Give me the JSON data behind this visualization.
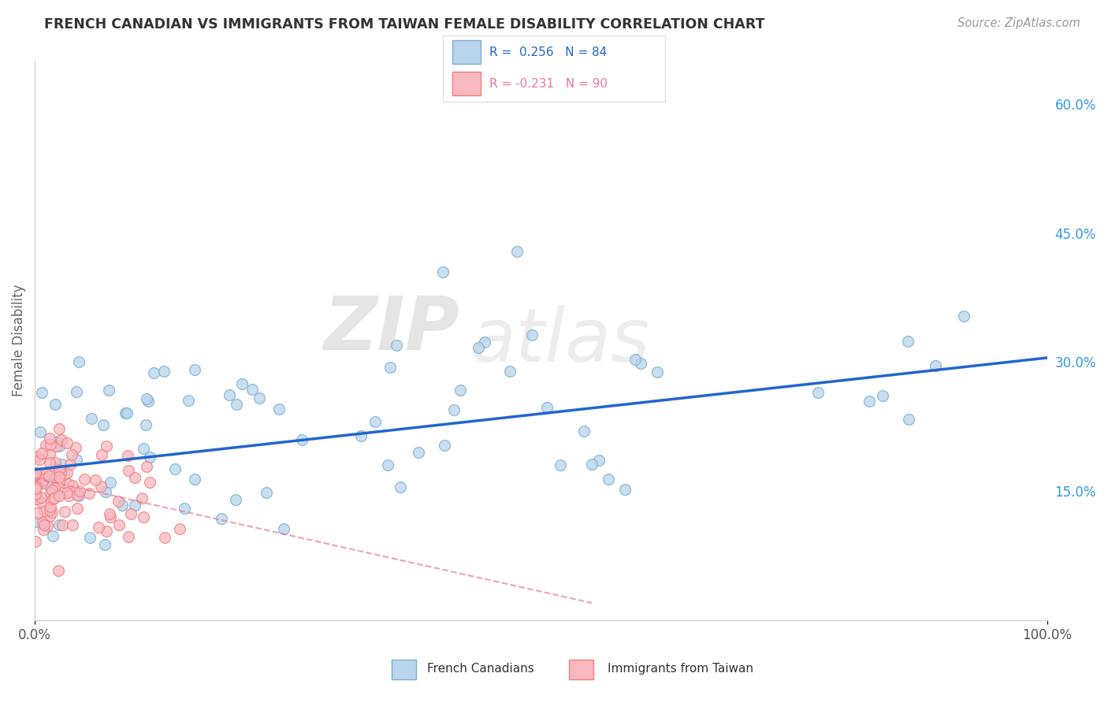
{
  "title": "FRENCH CANADIAN VS IMMIGRANTS FROM TAIWAN FEMALE DISABILITY CORRELATION CHART",
  "source": "Source: ZipAtlas.com",
  "ylabel": "Female Disability",
  "xlim": [
    0.0,
    1.0
  ],
  "ylim": [
    0.0,
    0.65
  ],
  "yticks": [
    0.15,
    0.3,
    0.45,
    0.6
  ],
  "ytick_labels": [
    "15.0%",
    "30.0%",
    "45.0%",
    "60.0%"
  ],
  "xticks": [
    0.0,
    1.0
  ],
  "xtick_labels": [
    "0.0%",
    "100.0%"
  ],
  "color_blue": "#7AAFD4",
  "color_blue_fill": "#B8D5EC",
  "color_pink": "#F08080",
  "color_pink_fill": "#F8B8C0",
  "color_line_blue": "#2266CC",
  "color_line_pink": "#EE7799",
  "watermark_zip": "ZIP",
  "watermark_atlas": "atlas",
  "background_color": "#FFFFFF",
  "grid_color": "#CCCCCC",
  "seed": 42,
  "n_blue": 84,
  "n_pink": 90,
  "blue_line_x0": 0.0,
  "blue_line_y0": 0.175,
  "blue_line_x1": 1.0,
  "blue_line_y1": 0.305,
  "pink_line_x0": 0.0,
  "pink_line_y0": 0.165,
  "pink_line_x1": 0.55,
  "pink_line_y1": 0.02
}
